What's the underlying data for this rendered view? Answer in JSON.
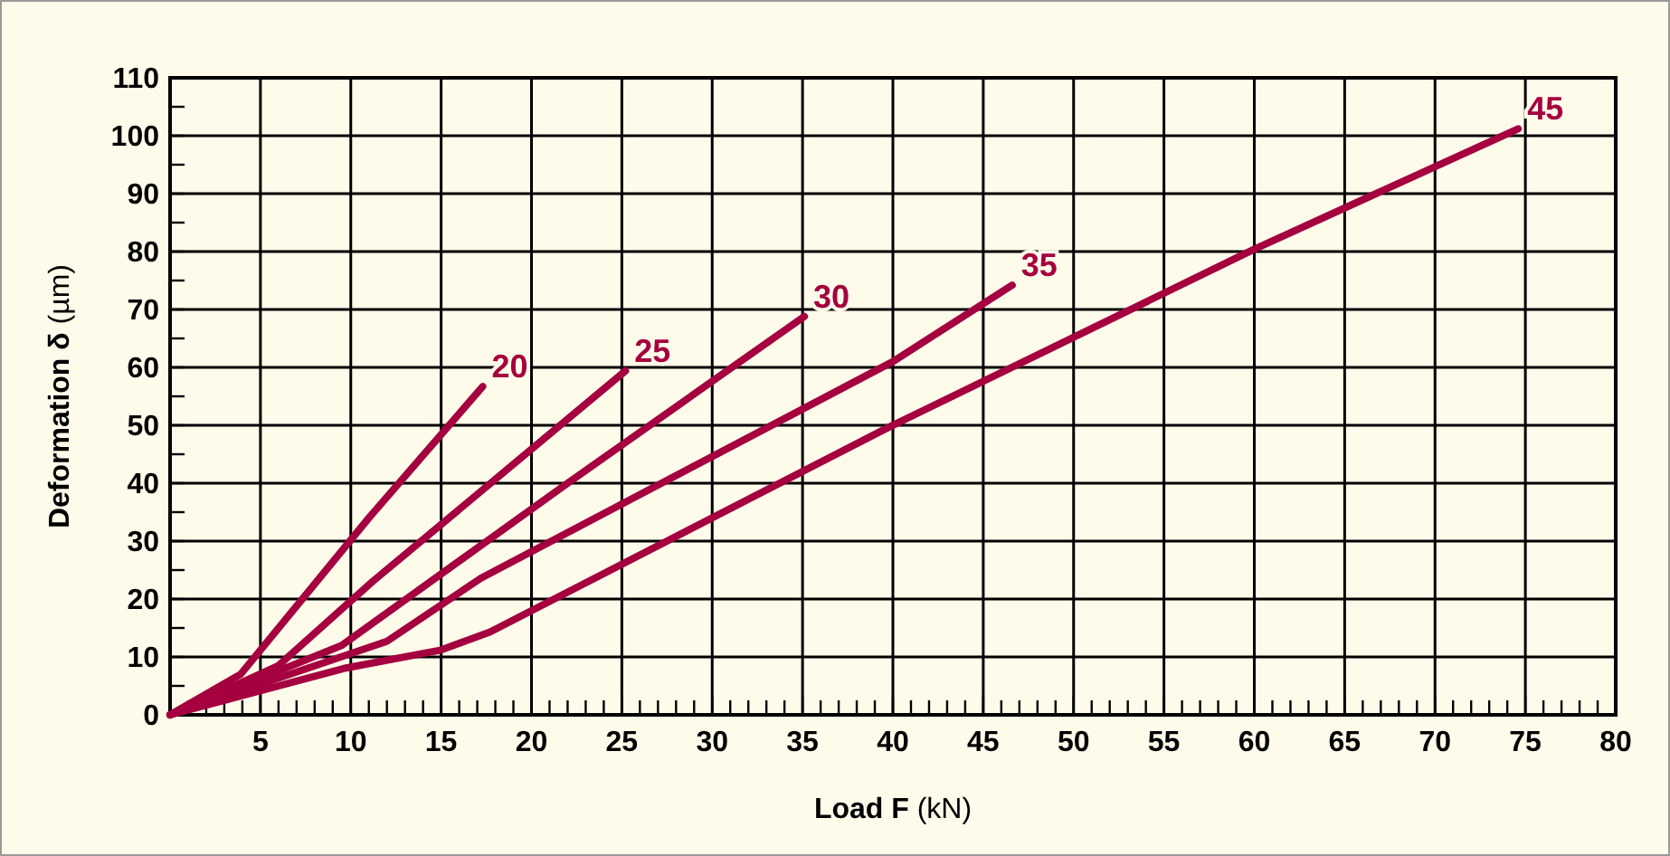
{
  "chart_data": {
    "type": "line",
    "xlabel": "Load F (kN)",
    "ylabel": "Deformation δ (µm)",
    "xlim": [
      0,
      80
    ],
    "ylim": [
      0,
      110
    ],
    "xticks": [
      {
        "value": 1,
        "label": null
      },
      {
        "value": 2,
        "label": null
      },
      {
        "value": 3,
        "label": null
      },
      {
        "value": 4,
        "label": null
      },
      5,
      {
        "value": 6,
        "label": null
      },
      {
        "value": 7,
        "label": null
      },
      {
        "value": 8,
        "label": null
      },
      {
        "value": 9,
        "label": null
      },
      10,
      {
        "value": 11,
        "label": null
      },
      {
        "value": 12,
        "label": null
      },
      {
        "value": 13,
        "label": null
      },
      {
        "value": 14,
        "label": null
      },
      15,
      {
        "value": 16,
        "label": null
      },
      {
        "value": 17,
        "label": null
      },
      {
        "value": 18,
        "label": null
      },
      {
        "value": 19,
        "label": null
      },
      20,
      {
        "value": 21,
        "label": null
      },
      {
        "value": 22,
        "label": null
      },
      {
        "value": 23,
        "label": null
      },
      {
        "value": 24,
        "label": null
      },
      25,
      {
        "value": 26,
        "label": null
      },
      {
        "value": 27,
        "label": null
      },
      {
        "value": 28,
        "label": null
      },
      {
        "value": 29,
        "label": null
      },
      30,
      {
        "value": 31,
        "label": null
      },
      {
        "value": 32,
        "label": null
      },
      {
        "value": 33,
        "label": null
      },
      {
        "value": 34,
        "label": null
      },
      35,
      {
        "value": 36,
        "label": null
      },
      {
        "value": 37,
        "label": null
      },
      {
        "value": 38,
        "label": null
      },
      {
        "value": 39,
        "label": null
      },
      40,
      {
        "value": 41,
        "label": null
      },
      {
        "value": 42,
        "label": null
      },
      {
        "value": 43,
        "label": null
      },
      {
        "value": 44,
        "label": null
      },
      45,
      {
        "value": 46,
        "label": null
      },
      {
        "value": 47,
        "label": null
      },
      {
        "value": 48,
        "label": null
      },
      {
        "value": 49,
        "label": null
      },
      50,
      {
        "value": 51,
        "label": null
      },
      {
        "value": 52,
        "label": null
      },
      {
        "value": 53,
        "label": null
      },
      {
        "value": 54,
        "label": null
      },
      55,
      {
        "value": 56,
        "label": null
      },
      {
        "value": 57,
        "label": null
      },
      {
        "value": 58,
        "label": null
      },
      {
        "value": 59,
        "label": null
      },
      60,
      {
        "value": 61,
        "label": null
      },
      {
        "value": 62,
        "label": null
      },
      {
        "value": 63,
        "label": null
      },
      {
        "value": 64,
        "label": null
      },
      65,
      {
        "value": 66,
        "label": null
      },
      {
        "value": 67,
        "label": null
      },
      {
        "value": 68,
        "label": null
      },
      {
        "value": 69,
        "label": null
      },
      70,
      {
        "value": 71,
        "label": null
      },
      {
        "value": 72,
        "label": null
      },
      {
        "value": 73,
        "label": null
      },
      {
        "value": 74,
        "label": null
      },
      75,
      {
        "value": 76,
        "label": null
      },
      {
        "value": 77,
        "label": null
      },
      {
        "value": 78,
        "label": null
      },
      {
        "value": 79,
        "label": null
      },
      80
    ],
    "yticks": [
      0,
      {
        "value": 5,
        "label": null
      },
      10,
      {
        "value": 15,
        "label": null
      },
      20,
      {
        "value": 25,
        "label": null
      },
      30,
      {
        "value": 35,
        "label": null
      },
      40,
      {
        "value": 45,
        "label": null
      },
      50,
      {
        "value": 55,
        "label": null
      },
      60,
      {
        "value": 65,
        "label": null
      },
      70,
      {
        "value": 75,
        "label": null
      },
      80,
      {
        "value": 85,
        "label": null
      },
      90,
      {
        "value": 95,
        "label": null
      },
      100,
      {
        "value": 105,
        "label": null
      },
      110
    ],
    "grid": true,
    "marker": "none",
    "line_style": "solid",
    "series": [
      {
        "name": "20",
        "color": "#a5003f",
        "x": [
          0,
          3.9,
          11,
          17.3
        ],
        "values": [
          0,
          7,
          34,
          56.7
        ]
      },
      {
        "name": "25",
        "color": "#a5003f",
        "x": [
          0,
          6,
          11.2,
          25.2
        ],
        "values": [
          0,
          8.5,
          23,
          59.4
        ]
      },
      {
        "name": "30",
        "color": "#a5003f",
        "x": [
          0,
          9.5,
          22,
          35.1
        ],
        "values": [
          0,
          12,
          40,
          68.8
        ]
      },
      {
        "name": "35",
        "color": "#a5003f",
        "x": [
          0,
          12,
          17.2,
          40,
          46.6
        ],
        "values": [
          0,
          12.7,
          23.6,
          61,
          74.2
        ]
      },
      {
        "name": "45",
        "color": "#a5003f",
        "x": [
          0,
          9.6,
          15,
          17.7,
          39.6,
          60,
          74.6
        ],
        "values": [
          0,
          8,
          11.2,
          14.3,
          49.4,
          80.4,
          101.2
        ]
      }
    ]
  }
}
